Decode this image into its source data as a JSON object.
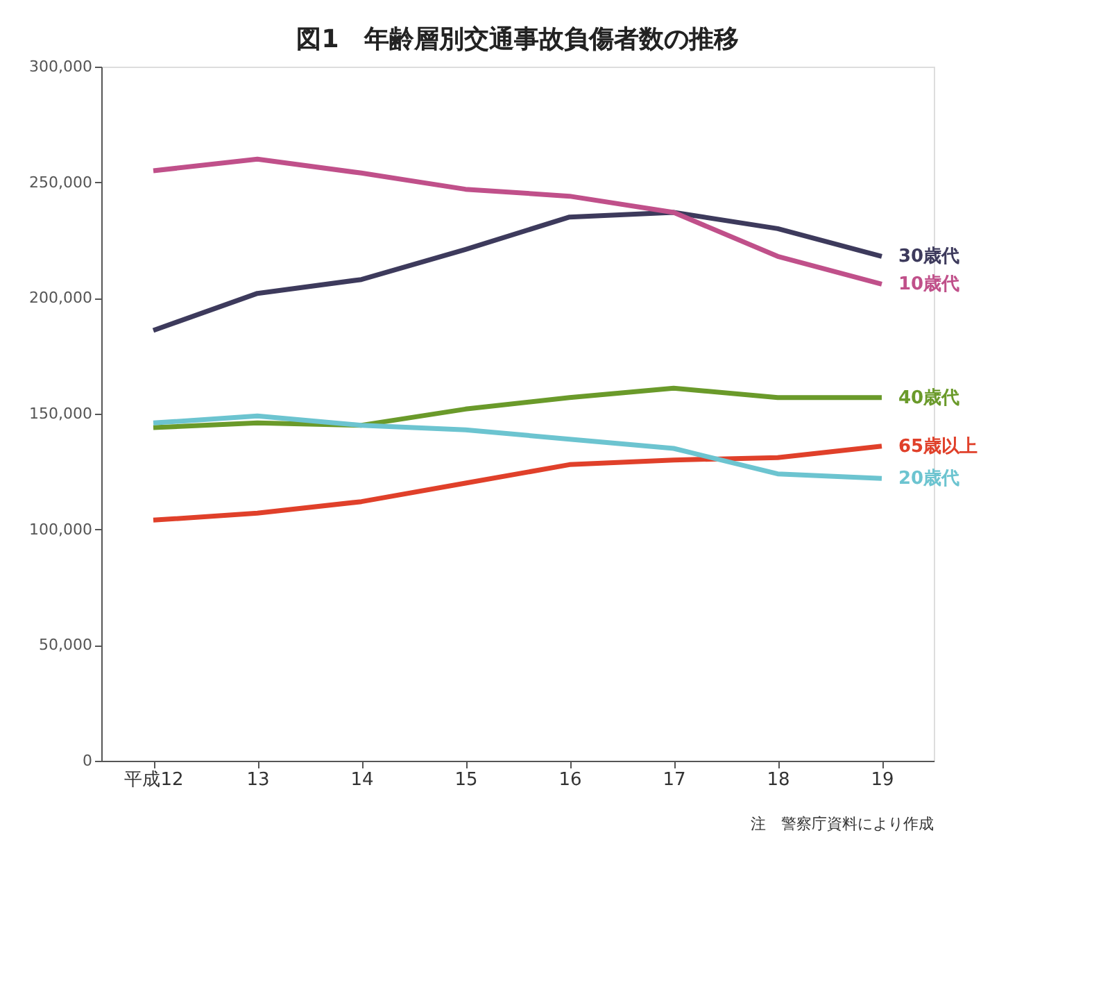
{
  "chart_data": {
    "type": "line",
    "title": "図1　年齢層別交通事故負傷者数の推移",
    "categories": [
      "平成12",
      "13",
      "14",
      "15",
      "16",
      "17",
      "18",
      "19"
    ],
    "series": [
      {
        "name": "30歳代",
        "color": "#3d3a5c",
        "values": [
          186000,
          202000,
          208000,
          221000,
          235000,
          237000,
          230000,
          218000
        ]
      },
      {
        "name": "10歳代",
        "color": "#c0508a",
        "values": [
          255000,
          260000,
          254000,
          247000,
          244000,
          237000,
          218000,
          206000
        ]
      },
      {
        "name": "40歳代",
        "color": "#6a9a2a",
        "values": [
          144000,
          146000,
          145000,
          152000,
          157000,
          161000,
          157000,
          157000
        ]
      },
      {
        "name": "65歳以上",
        "color": "#e0402a",
        "values": [
          104000,
          107000,
          112000,
          120000,
          128000,
          130000,
          131000,
          136000
        ]
      },
      {
        "name": "20歳代",
        "color": "#6cc4d0",
        "values": [
          146000,
          149000,
          145000,
          143000,
          139000,
          135000,
          124000,
          122000
        ]
      }
    ],
    "ylim": [
      0,
      300000
    ],
    "yticks": [
      0,
      {
        "value": 50000,
        "label": "50,000"
      },
      {
        "value": 100000,
        "label": "100,000"
      },
      {
        "value": 150000,
        "label": "150,000"
      },
      {
        "value": 200000,
        "label": "200,000"
      },
      {
        "value": 250000,
        "label": "250,000"
      },
      {
        "value": 300000,
        "label": "300,000"
      }
    ],
    "grid": false,
    "marker": "none",
    "line_style": "solid",
    "annotations": [
      "注　警察庁資料により作成"
    ]
  }
}
